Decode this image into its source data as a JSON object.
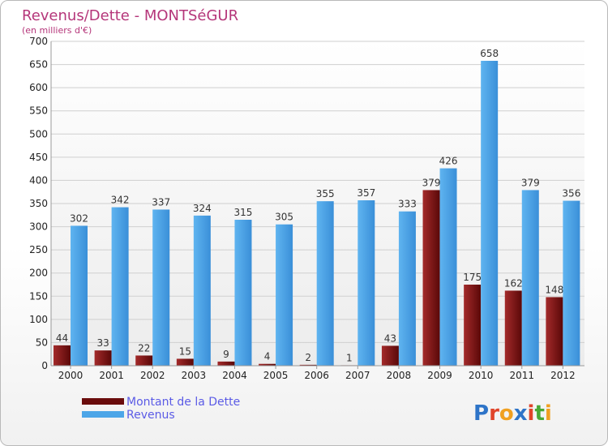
{
  "chart_data": {
    "type": "bar",
    "title": "Revenus/Dette - MONTSéGUR",
    "subtitle": "(en milliers d'€)",
    "categories": [
      "2000",
      "2001",
      "2002",
      "2003",
      "2004",
      "2005",
      "2006",
      "2007",
      "2008",
      "2009",
      "2010",
      "2011",
      "2012"
    ],
    "series": [
      {
        "name": "Montant de la Dette",
        "color": "#7a1010",
        "values": [
          44,
          33,
          22,
          15,
          9,
          4,
          2,
          1,
          43,
          379,
          175,
          162,
          148
        ]
      },
      {
        "name": "Revenus",
        "color": "#4da6e8",
        "values": [
          302,
          342,
          337,
          324,
          315,
          305,
          355,
          357,
          333,
          426,
          658,
          379,
          356
        ]
      }
    ],
    "ylim": [
      0,
      700
    ],
    "yticks": [
      0,
      50,
      100,
      150,
      200,
      250,
      300,
      350,
      400,
      450,
      500,
      550,
      600,
      650,
      700
    ],
    "grid": true,
    "legend_position": "bottom-left"
  },
  "logo": {
    "text": "Proxiti",
    "letter_colors": [
      "#2e74c8",
      "#e0442a",
      "#f0a020",
      "#2e74c8",
      "#e0442a",
      "#49a835",
      "#f0a020"
    ]
  }
}
